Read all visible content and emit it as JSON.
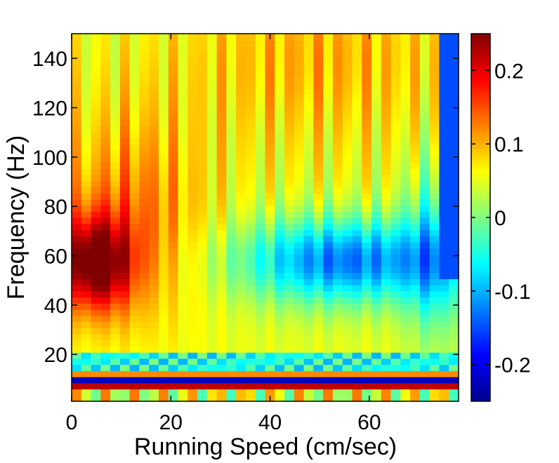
{
  "chart_data": {
    "type": "heatmap",
    "title": "",
    "xlabel": "Running Speed (cm/sec)",
    "ylabel": "Frequency (Hz)",
    "xlim": [
      0,
      78
    ],
    "ylim": [
      1,
      150
    ],
    "x_ticks": [
      "0",
      "20",
      "40",
      "60"
    ],
    "y_ticks": [
      "20",
      "40",
      "60",
      "80",
      "100",
      "120",
      "140"
    ],
    "colormap": "jet",
    "clim": [
      -0.25,
      0.25
    ],
    "colorbar_ticks": [
      "0.2",
      "0.1",
      "0",
      "-0.1",
      "-0.2"
    ],
    "grid": false
  }
}
